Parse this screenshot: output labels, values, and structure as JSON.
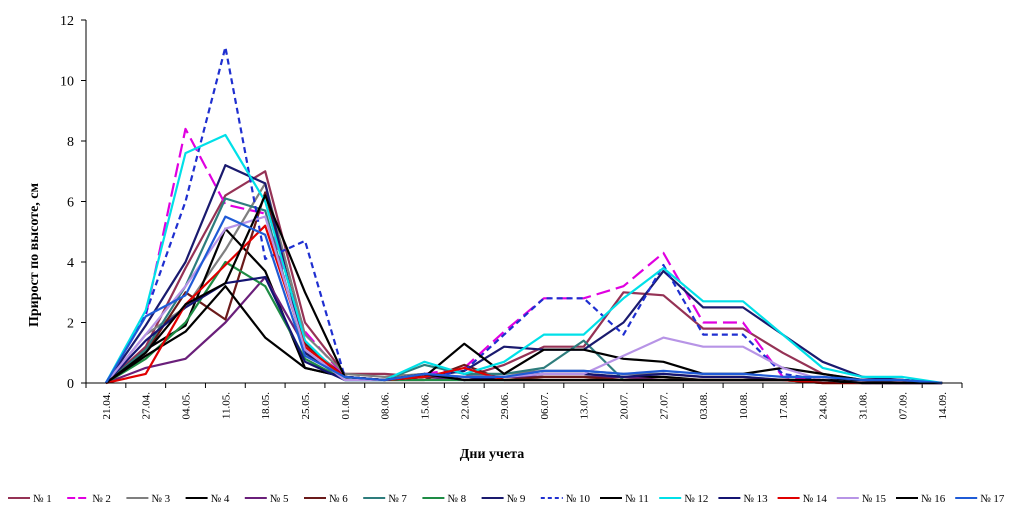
{
  "chart_data": {
    "type": "line",
    "title": "",
    "xlabel": "Дни учета",
    "ylabel": "Прирост по высоте, см",
    "ylim": [
      0,
      12
    ],
    "yticks": [
      "0",
      "2",
      "4",
      "6",
      "8",
      "10",
      "12"
    ],
    "categories": [
      "21.04.",
      "27.04.",
      "04.05.",
      "11.05.",
      "18.05.",
      "25.05.",
      "01.06.",
      "08.06.",
      "15.06.",
      "22.06.",
      "29.06.",
      "06.07.",
      "13.07.",
      "20.07.",
      "27.07.",
      "03.08.",
      "10.08.",
      "17.08.",
      "24.08.",
      "31.08.",
      "07.09.",
      "14.09."
    ],
    "grid": false,
    "legend_position": "bottom",
    "series": [
      {
        "name": "№ 1",
        "color": "#953255",
        "dash": "solid",
        "values": [
          0,
          1.2,
          3.8,
          6.2,
          7.0,
          2.0,
          0.3,
          0.3,
          0.2,
          0.2,
          0.6,
          1.2,
          1.2,
          3.0,
          2.9,
          1.8,
          1.8,
          1.0,
          0.3,
          0.1,
          0.1,
          0
        ]
      },
      {
        "name": "№ 2",
        "color": "#e000e0",
        "dash": "long",
        "values": [
          0,
          2.2,
          8.4,
          5.9,
          5.6,
          1.7,
          0.2,
          0.1,
          0.3,
          0.5,
          1.7,
          2.8,
          2.8,
          3.2,
          4.3,
          2.0,
          2.0,
          0.2,
          0.1,
          0.1,
          0.1,
          0
        ]
      },
      {
        "name": "№ 3",
        "color": "#7f7f7f",
        "dash": "solid",
        "values": [
          0,
          1.6,
          2.5,
          4.4,
          6.6,
          1.6,
          0.3,
          0.2,
          0.3,
          0.2,
          0.3,
          0.4,
          0.4,
          0.3,
          0.3,
          0.2,
          0.2,
          0.1,
          0.1,
          0.1,
          0.1,
          0
        ]
      },
      {
        "name": "№ 4",
        "color": "#000000",
        "dash": "solid",
        "values": [
          0,
          1.1,
          1.9,
          5.1,
          3.7,
          0.5,
          0.2,
          0.1,
          0.3,
          0.1,
          0.2,
          0.3,
          0.3,
          0.2,
          0.2,
          0.1,
          0.1,
          0.1,
          0.1,
          0.1,
          0,
          0
        ]
      },
      {
        "name": "№ 5",
        "color": "#6a1f7a",
        "dash": "solid",
        "values": [
          0,
          0.5,
          0.8,
          2.0,
          3.5,
          1.2,
          0.2,
          0.1,
          0.2,
          0.1,
          0.2,
          0.2,
          0.2,
          0.2,
          0.1,
          0.1,
          0.1,
          0.1,
          0.1,
          0,
          0,
          0
        ]
      },
      {
        "name": "№ 6",
        "color": "#6b1a1a",
        "dash": "solid",
        "values": [
          0,
          1.0,
          3.0,
          2.1,
          6.3,
          1.3,
          0.2,
          0.1,
          0.1,
          0.6,
          0.1,
          0.2,
          0.2,
          0.1,
          0.1,
          0.1,
          0.1,
          0.1,
          0,
          0,
          0,
          0
        ]
      },
      {
        "name": "№ 7",
        "color": "#2e7d7d",
        "dash": "solid",
        "values": [
          0,
          1.1,
          3.2,
          6.1,
          5.7,
          1.0,
          0.1,
          0.1,
          0.6,
          0.3,
          0.3,
          0.5,
          1.4,
          0.1,
          0.1,
          0.1,
          0.1,
          0.1,
          0.1,
          0,
          0,
          0
        ]
      },
      {
        "name": "№ 8",
        "color": "#1e8c45",
        "dash": "solid",
        "values": [
          0,
          0.8,
          2.0,
          4.0,
          3.2,
          0.8,
          0.1,
          0.1,
          0.1,
          0.1,
          0.1,
          0.1,
          0.1,
          0.1,
          0.1,
          0.1,
          0.1,
          0.1,
          0,
          0,
          0,
          0
        ]
      },
      {
        "name": "№ 9",
        "color": "#1a1a6e",
        "dash": "solid",
        "values": [
          0,
          1.9,
          4.0,
          7.2,
          6.6,
          1.0,
          0.2,
          0.1,
          0.2,
          0.4,
          1.2,
          1.1,
          1.1,
          2.0,
          3.7,
          2.5,
          2.5,
          1.6,
          0.7,
          0.2,
          0.1,
          0
        ]
      },
      {
        "name": "№ 10",
        "color": "#1f2fd0",
        "dash": "short",
        "values": [
          0,
          2.3,
          6.0,
          11.1,
          4.1,
          4.7,
          0.2,
          0.1,
          0.2,
          0.4,
          1.6,
          2.8,
          2.8,
          1.6,
          3.9,
          1.6,
          1.6,
          0.3,
          0.1,
          0,
          0,
          0
        ]
      },
      {
        "name": "№ 11",
        "color": "#000000",
        "dash": "solid",
        "values": [
          0,
          0.9,
          1.7,
          3.2,
          1.5,
          0.5,
          0.2,
          0.1,
          0.2,
          1.3,
          0.3,
          1.1,
          1.1,
          0.8,
          0.7,
          0.3,
          0.3,
          0.5,
          0.3,
          0.1,
          0.1,
          0
        ]
      },
      {
        "name": "№ 12",
        "color": "#00e0e8",
        "dash": "solid",
        "values": [
          0,
          2.4,
          7.6,
          8.2,
          6.0,
          1.4,
          0.1,
          0.1,
          0.7,
          0.3,
          0.7,
          1.6,
          1.6,
          2.8,
          3.8,
          2.7,
          2.7,
          1.6,
          0.5,
          0.2,
          0.2,
          0
        ]
      },
      {
        "name": "№ 13",
        "color": "#141472",
        "dash": "solid",
        "values": [
          0,
          1.4,
          2.5,
          3.3,
          3.5,
          0.7,
          0.1,
          0.1,
          0.3,
          0.1,
          0.2,
          0.3,
          0.3,
          0.2,
          0.3,
          0.2,
          0.2,
          0.1,
          0.1,
          0,
          0,
          0
        ]
      },
      {
        "name": "№ 14",
        "color": "#e00000",
        "dash": "solid",
        "values": [
          0,
          0.3,
          2.6,
          3.9,
          5.2,
          1.2,
          0.2,
          0.1,
          0.2,
          0.5,
          0.1,
          0.1,
          0.1,
          0.1,
          0.1,
          0.1,
          0.1,
          0.1,
          0,
          0,
          0,
          0
        ]
      },
      {
        "name": "№ 15",
        "color": "#b794e6",
        "dash": "solid",
        "values": [
          0,
          1.6,
          3.2,
          5.1,
          5.5,
          1.1,
          0.1,
          0.1,
          0.3,
          0.2,
          0.2,
          0.3,
          0.3,
          0.9,
          1.5,
          1.2,
          1.2,
          0.5,
          0.1,
          0,
          0,
          0
        ]
      },
      {
        "name": "№ 16",
        "color": "#000000",
        "dash": "solid",
        "values": [
          0,
          1.0,
          2.6,
          3.3,
          6.2,
          3.0,
          0.2,
          0.1,
          0.3,
          0.1,
          0.1,
          0.1,
          0.1,
          0.1,
          0.1,
          0.1,
          0.1,
          0.1,
          0.1,
          0,
          0,
          0
        ]
      },
      {
        "name": "№ 17",
        "color": "#1f5bd6",
        "dash": "solid",
        "values": [
          0,
          2.2,
          2.9,
          5.5,
          4.9,
          0.9,
          0.2,
          0.1,
          0.3,
          0.2,
          0.2,
          0.4,
          0.4,
          0.3,
          0.4,
          0.3,
          0.3,
          0.2,
          0.2,
          0.1,
          0.1,
          0
        ]
      }
    ]
  }
}
